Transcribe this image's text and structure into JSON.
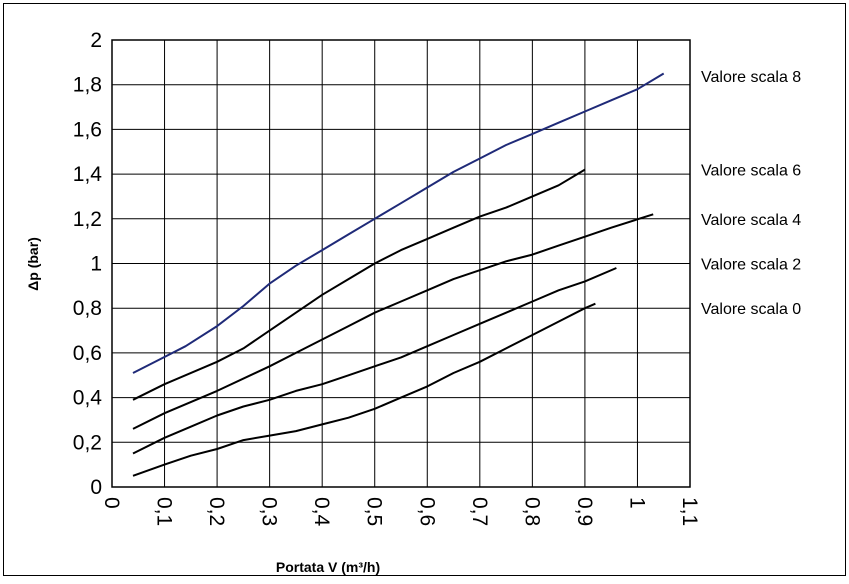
{
  "chart_data": {
    "type": "line",
    "xlabel": "Portata V (m³/h)",
    "ylabel": "Δp (bar)",
    "xlim": [
      0,
      1.1
    ],
    "ylim": [
      0,
      2
    ],
    "grid": true,
    "x_ticks": [
      {
        "value": 0,
        "label": "0"
      },
      {
        "value": 0.1,
        "label": "0,1"
      },
      {
        "value": 0.2,
        "label": "0,2"
      },
      {
        "value": 0.3,
        "label": "0,3"
      },
      {
        "value": 0.4,
        "label": "0,4"
      },
      {
        "value": 0.5,
        "label": "0,5"
      },
      {
        "value": 0.6,
        "label": "0,6"
      },
      {
        "value": 0.7,
        "label": "0,7"
      },
      {
        "value": 0.8,
        "label": "0,8"
      },
      {
        "value": 0.9,
        "label": "0,9"
      },
      {
        "value": 1.0,
        "label": "1"
      },
      {
        "value": 1.1,
        "label": "1,1"
      }
    ],
    "y_ticks": [
      {
        "value": 0,
        "label": "0"
      },
      {
        "value": 0.2,
        "label": "0,2"
      },
      {
        "value": 0.4,
        "label": "0,4"
      },
      {
        "value": 0.6,
        "label": "0,6"
      },
      {
        "value": 0.8,
        "label": "0,8"
      },
      {
        "value": 1.0,
        "label": "1"
      },
      {
        "value": 1.2,
        "label": "1,2"
      },
      {
        "value": 1.4,
        "label": "1,4"
      },
      {
        "value": 1.6,
        "label": "1,6"
      },
      {
        "value": 1.8,
        "label": "1,8"
      },
      {
        "value": 2.0,
        "label": "2"
      }
    ],
    "series": [
      {
        "name": "Valore scala 8",
        "color": "#1f2a78",
        "label_y": 1.84,
        "points": [
          [
            0.04,
            0.51
          ],
          [
            0.09,
            0.57
          ],
          [
            0.14,
            0.63
          ],
          [
            0.2,
            0.72
          ],
          [
            0.25,
            0.81
          ],
          [
            0.3,
            0.91
          ],
          [
            0.35,
            0.99
          ],
          [
            0.4,
            1.06
          ],
          [
            0.45,
            1.13
          ],
          [
            0.5,
            1.2
          ],
          [
            0.55,
            1.27
          ],
          [
            0.6,
            1.34
          ],
          [
            0.65,
            1.41
          ],
          [
            0.7,
            1.47
          ],
          [
            0.75,
            1.53
          ],
          [
            0.8,
            1.58
          ],
          [
            0.85,
            1.63
          ],
          [
            0.9,
            1.68
          ],
          [
            0.95,
            1.73
          ],
          [
            1.0,
            1.78
          ],
          [
            1.05,
            1.85
          ]
        ]
      },
      {
        "name": "Valore scala 6",
        "color": "#000000",
        "label_y": 1.42,
        "points": [
          [
            0.04,
            0.39
          ],
          [
            0.1,
            0.46
          ],
          [
            0.2,
            0.56
          ],
          [
            0.25,
            0.62
          ],
          [
            0.3,
            0.7
          ],
          [
            0.35,
            0.78
          ],
          [
            0.4,
            0.86
          ],
          [
            0.45,
            0.93
          ],
          [
            0.5,
            1.0
          ],
          [
            0.55,
            1.06
          ],
          [
            0.6,
            1.11
          ],
          [
            0.65,
            1.16
          ],
          [
            0.7,
            1.21
          ],
          [
            0.75,
            1.25
          ],
          [
            0.8,
            1.3
          ],
          [
            0.85,
            1.35
          ],
          [
            0.9,
            1.42
          ]
        ]
      },
      {
        "name": "Valore scala 4",
        "color": "#000000",
        "label_y": 1.2,
        "points": [
          [
            0.04,
            0.26
          ],
          [
            0.1,
            0.33
          ],
          [
            0.2,
            0.43
          ],
          [
            0.3,
            0.54
          ],
          [
            0.35,
            0.6
          ],
          [
            0.4,
            0.66
          ],
          [
            0.45,
            0.72
          ],
          [
            0.5,
            0.78
          ],
          [
            0.55,
            0.83
          ],
          [
            0.6,
            0.88
          ],
          [
            0.65,
            0.93
          ],
          [
            0.7,
            0.97
          ],
          [
            0.75,
            1.01
          ],
          [
            0.8,
            1.04
          ],
          [
            0.85,
            1.08
          ],
          [
            0.9,
            1.12
          ],
          [
            0.95,
            1.16
          ],
          [
            1.03,
            1.22
          ]
        ]
      },
      {
        "name": "Valore scala 2",
        "color": "#000000",
        "label_y": 1.0,
        "points": [
          [
            0.04,
            0.15
          ],
          [
            0.1,
            0.22
          ],
          [
            0.15,
            0.27
          ],
          [
            0.2,
            0.32
          ],
          [
            0.25,
            0.36
          ],
          [
            0.3,
            0.39
          ],
          [
            0.35,
            0.43
          ],
          [
            0.4,
            0.46
          ],
          [
            0.45,
            0.5
          ],
          [
            0.5,
            0.54
          ],
          [
            0.55,
            0.58
          ],
          [
            0.6,
            0.63
          ],
          [
            0.65,
            0.68
          ],
          [
            0.7,
            0.73
          ],
          [
            0.75,
            0.78
          ],
          [
            0.8,
            0.83
          ],
          [
            0.85,
            0.88
          ],
          [
            0.9,
            0.92
          ],
          [
            0.96,
            0.98
          ]
        ]
      },
      {
        "name": "Valore scala 0",
        "color": "#000000",
        "label_y": 0.8,
        "points": [
          [
            0.04,
            0.05
          ],
          [
            0.1,
            0.1
          ],
          [
            0.15,
            0.14
          ],
          [
            0.2,
            0.17
          ],
          [
            0.25,
            0.21
          ],
          [
            0.3,
            0.23
          ],
          [
            0.35,
            0.25
          ],
          [
            0.4,
            0.28
          ],
          [
            0.45,
            0.31
          ],
          [
            0.5,
            0.35
          ],
          [
            0.55,
            0.4
          ],
          [
            0.6,
            0.45
          ],
          [
            0.65,
            0.51
          ],
          [
            0.7,
            0.56
          ],
          [
            0.75,
            0.62
          ],
          [
            0.8,
            0.68
          ],
          [
            0.85,
            0.74
          ],
          [
            0.9,
            0.8
          ],
          [
            0.92,
            0.82
          ]
        ]
      }
    ]
  }
}
